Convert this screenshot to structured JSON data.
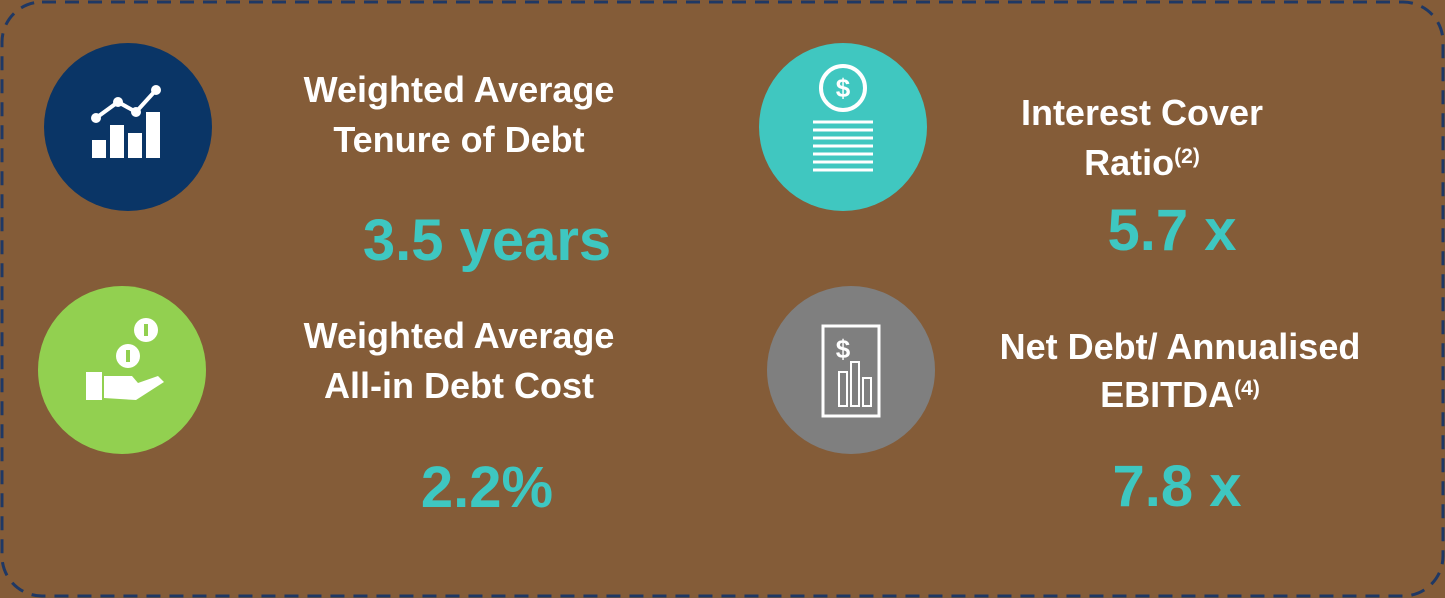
{
  "metrics": [
    {
      "title_lines": [
        "Weighted Average",
        "Tenure of Debt"
      ],
      "value": "3.5 years"
    },
    {
      "title_lines": [
        "Interest Cover",
        "Ratio"
      ],
      "superscript": "(2)",
      "value": "5.7 x"
    },
    {
      "title_lines": [
        "Weighted Average",
        "All-in Debt Cost"
      ],
      "value": "2.2%"
    },
    {
      "title_lines": [
        "Net Debt/ Annualised",
        "EBITDA"
      ],
      "superscript": "(4)",
      "value": "7.8 x"
    }
  ]
}
